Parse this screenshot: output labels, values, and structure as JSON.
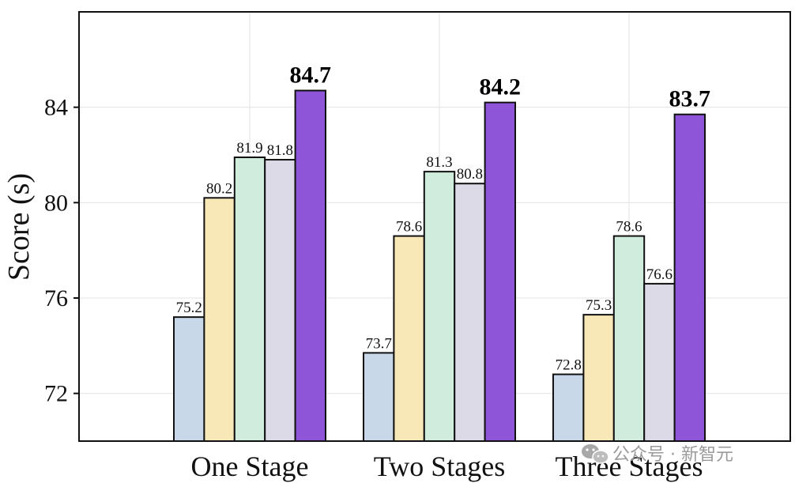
{
  "chart_data": {
    "type": "bar",
    "categories": [
      "One Stage",
      "Two Stages",
      "Three Stages"
    ],
    "series": [
      {
        "values": [
          75.2,
          73.7,
          72.8
        ],
        "color": "#c8d8e8"
      },
      {
        "values": [
          80.2,
          78.6,
          75.3
        ],
        "color": "#f8e8b8"
      },
      {
        "values": [
          81.9,
          81.3,
          78.6
        ],
        "color": "#d0ecdc"
      },
      {
        "values": [
          81.8,
          80.8,
          76.6
        ],
        "color": "#dcdae6"
      },
      {
        "values": [
          84.7,
          84.2,
          83.7
        ],
        "color": "#8e55d8"
      }
    ],
    "bold_series_index": 4,
    "title": "",
    "xlabel": "",
    "ylabel": "Score (s)",
    "ylim": [
      70,
      88
    ],
    "yticks": [
      72,
      76,
      80,
      84
    ],
    "xlim": [
      -0.9,
      2.85
    ],
    "grid": true,
    "legend": "none"
  },
  "watermark": {
    "text": "公众号 · 新智元",
    "icon": "wechat-icon"
  }
}
